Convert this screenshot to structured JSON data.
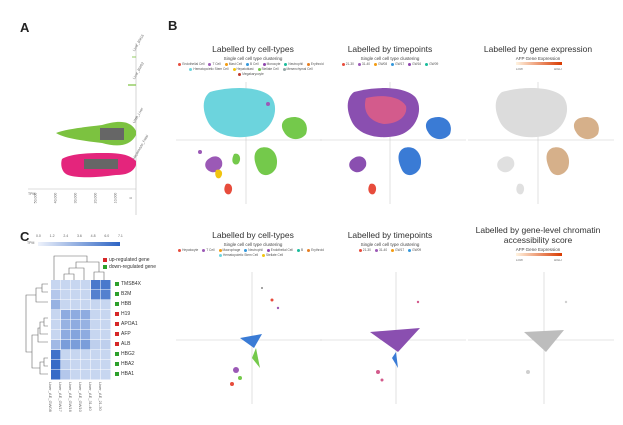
{
  "panels": {
    "a": {
      "letter": "A"
    },
    "b": {
      "letter": "B"
    },
    "c": {
      "letter": "C"
    }
  },
  "panel_a": {
    "violin_labels": [
      "Liver_BM16",
      "Liver_BW02",
      "UMB_Liver",
      "Hepatocyte_Fetal"
    ],
    "axis_label": "TPM",
    "ticks": [
      "0",
      "10,000",
      "20,000",
      "30,000",
      "40,000",
      "50,000"
    ],
    "colors": {
      "green": "#7cc240",
      "pink": "#e4257c"
    }
  },
  "panel_b": {
    "top": [
      {
        "title": "Labelled by cell-types",
        "subtitle": "Single cell cell type clustering",
        "legend": [
          "Endothelial Cell",
          "T Cell",
          "Mast Cell",
          "B Cell",
          "Monocyte",
          "Neutrophil",
          "Erythroid",
          "Hematopoietic Stem Cell",
          "Hepatoblast",
          "Stellate Cell",
          "Mesenchymal Cell",
          "Megakaryocyte"
        ]
      },
      {
        "title": "Labelled by timepoints",
        "subtitle": "Single cell cell type clustering",
        "legend": [
          "21-30",
          "31-40",
          "GW08",
          "GW17",
          "GW16",
          "GW09"
        ]
      },
      {
        "title": "Labelled by gene expression",
        "subtitle": "AFP Gene Expression",
        "scale_low": "LOW",
        "scale_high": "HIGH",
        "scale_mid": "0"
      }
    ],
    "bottom": [
      {
        "title": "Labelled by cell-types",
        "subtitle": "Single cell cell type clustering",
        "legend": [
          "Hepatocyte",
          "T Cell",
          "Macrophage",
          "Neutrophil",
          "Endothelial Cell",
          "B",
          "Erythroid",
          "Hematopoietic Stem Cell",
          "Stellate Cell"
        ]
      },
      {
        "title": "Labelled by timepoints",
        "subtitle": "Single cell cell type clustering",
        "legend": [
          "21-30",
          "31-40",
          "GW17",
          "GW09"
        ]
      },
      {
        "title_line1": "Labelled by gene-level chromatin",
        "title_line2": "accessibility score",
        "subtitle": "AFP Gene Expression",
        "scale_low": "LOW",
        "scale_high": "HIGH",
        "scale_mid": "0"
      }
    ]
  },
  "panel_c": {
    "colorbar_label": "TPM",
    "colorbar_ticks": [
      "0.0",
      "1.2",
      "2.4",
      "3.6",
      "4.8",
      "6.0",
      "7.1"
    ],
    "legend": [
      {
        "label": "up-regulated gene",
        "color": "#d62728"
      },
      {
        "label": "down-regulated gene",
        "color": "#2ca02c"
      }
    ],
    "genes": [
      {
        "name": "TMSB4X",
        "dir": "down"
      },
      {
        "name": "B2M",
        "dir": "down"
      },
      {
        "name": "HBB",
        "dir": "down"
      },
      {
        "name": "H19",
        "dir": "up"
      },
      {
        "name": "APOA1",
        "dir": "up"
      },
      {
        "name": "AFP",
        "dir": "up"
      },
      {
        "name": "ALB",
        "dir": "up"
      },
      {
        "name": "HBG2",
        "dir": "down"
      },
      {
        "name": "HBA2",
        "dir": "down"
      },
      {
        "name": "HBA1",
        "dir": "down"
      }
    ],
    "samples": [
      "Liver_AE_GW08",
      "Liver_AE_GW17",
      "Liver_AE_GW16",
      "Liver_AE_GW10",
      "Liver_AE_31-40",
      "Liver_AE_21-30"
    ],
    "matrix": [
      [
        0.2,
        0.2,
        0.2,
        0.2,
        0.85,
        0.85
      ],
      [
        0.3,
        0.2,
        0.2,
        0.2,
        0.8,
        0.8
      ],
      [
        0.45,
        0.2,
        0.2,
        0.2,
        0.2,
        0.2
      ],
      [
        0.2,
        0.5,
        0.5,
        0.5,
        0.2,
        0.2
      ],
      [
        0.2,
        0.45,
        0.5,
        0.45,
        0.2,
        0.2
      ],
      [
        0.2,
        0.5,
        0.55,
        0.5,
        0.2,
        0.2
      ],
      [
        0.4,
        0.6,
        0.6,
        0.6,
        0.25,
        0.25
      ],
      [
        0.9,
        0.2,
        0.2,
        0.2,
        0.2,
        0.2
      ],
      [
        0.95,
        0.25,
        0.2,
        0.2,
        0.2,
        0.2
      ],
      [
        0.95,
        0.3,
        0.2,
        0.2,
        0.2,
        0.2
      ]
    ]
  }
}
